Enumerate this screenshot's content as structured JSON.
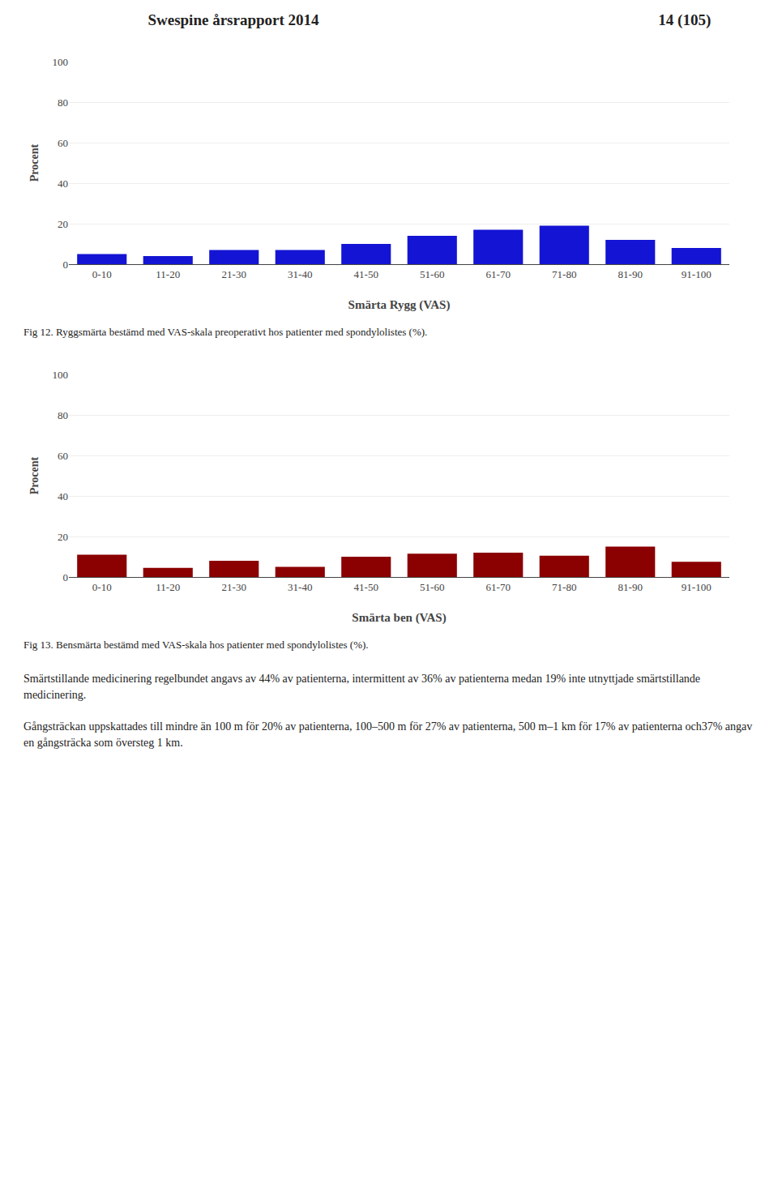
{
  "title": "Swespine årsrapport 2014",
  "annotations": [
    "14 (105)",
    "Smärtstillande medicinering regelbundet angavs av 44% av patienterna, intermittent av 36% av patienterna medan 19% inte utnyttjade smärtstillande medicinering.",
    "Gångsträckan uppskattades till mindre än 100 m för 20% av patienterna, 100–500 m för 27% av patienterna, 500 m–1 km för 17% av patienterna och37% angav en gångsträcka som översteg 1 km."
  ],
  "chart_data": [
    {
      "type": "bar",
      "categories": [
        "0-10",
        "11-20",
        "21-30",
        "31-40",
        "41-50",
        "51-60",
        "61-70",
        "71-80",
        "81-90",
        "91-100"
      ],
      "values": [
        5,
        4,
        7,
        7,
        10,
        14,
        17,
        19,
        12,
        8
      ],
      "color": "#1414d4",
      "xlabel": "Smärta Rygg (VAS)",
      "ylabel": "Procent",
      "ylim": [
        0,
        100
      ],
      "yticks": [
        0,
        20,
        40,
        60,
        80,
        100
      ],
      "grid": true,
      "annotations": [
        "Fig 12. Ryggsmärta bestämd med VAS-skala preoperativt hos patienter med spondylolistes (%)."
      ]
    },
    {
      "type": "bar",
      "categories": [
        "0-10",
        "11-20",
        "21-30",
        "31-40",
        "41-50",
        "51-60",
        "61-70",
        "71-80",
        "81-90",
        "91-100"
      ],
      "values": [
        11,
        4.5,
        8,
        5,
        10,
        11.5,
        12,
        10.5,
        15,
        7.5
      ],
      "color": "#8b0000",
      "xlabel": "Smärta ben (VAS)",
      "ylabel": "Procent",
      "ylim": [
        0,
        100
      ],
      "yticks": [
        0,
        20,
        40,
        60,
        80,
        100
      ],
      "grid": true,
      "annotations": [
        "Fig 13. Bensmärta bestämd med VAS-skala hos patienter med spondylolistes (%)."
      ]
    }
  ]
}
